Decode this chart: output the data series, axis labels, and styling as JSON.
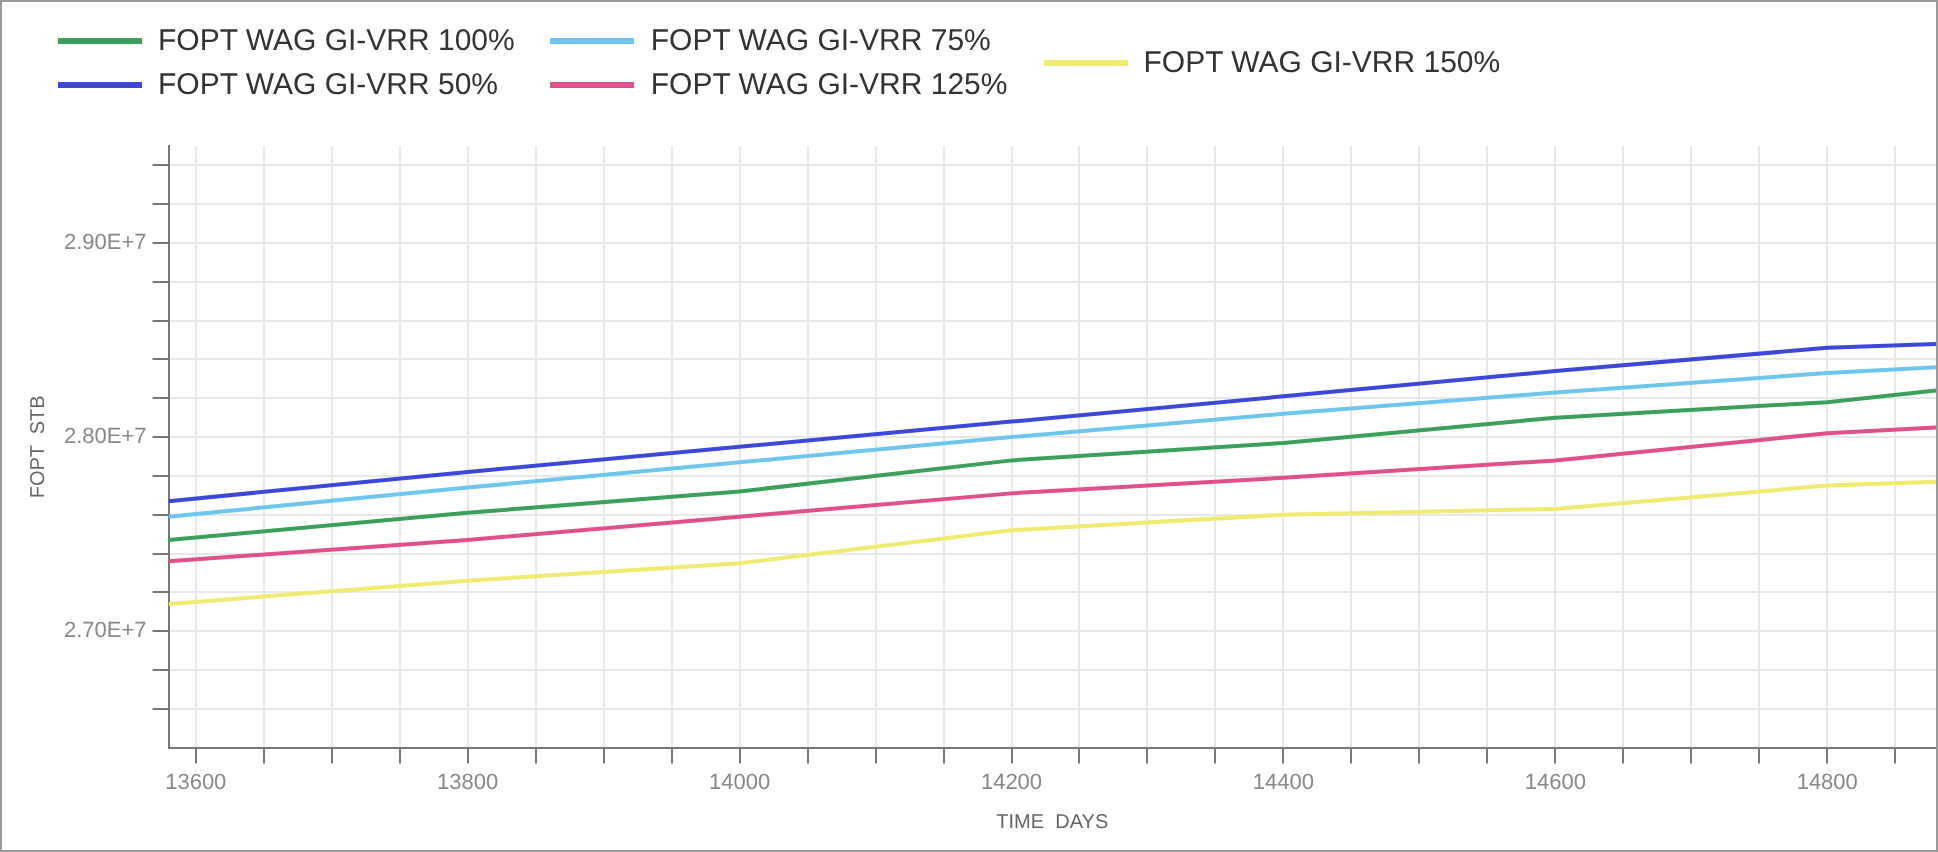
{
  "chart_data": {
    "type": "line",
    "xlabel": "TIME  DAYS",
    "ylabel": "FOPT  STB",
    "x": [
      13580,
      13800,
      14000,
      14200,
      14400,
      14600,
      14800,
      14880
    ],
    "series": [
      {
        "name": "FOPT WAG GI-VRR 100%",
        "color": "#3aa05a",
        "values": [
          27470000,
          27610000,
          27720000,
          27880000,
          27970000,
          28100000,
          28180000,
          28240000
        ]
      },
      {
        "name": "FOPT WAG GI-VRR 50%",
        "color": "#3c48d8",
        "values": [
          27670000,
          27820000,
          27950000,
          28080000,
          28210000,
          28340000,
          28460000,
          28480000
        ]
      },
      {
        "name": "FOPT WAG GI-VRR 75%",
        "color": "#6ec6ee",
        "values": [
          27590000,
          27740000,
          27870000,
          28000000,
          28120000,
          28230000,
          28330000,
          28360000
        ]
      },
      {
        "name": "FOPT WAG GI-VRR 125%",
        "color": "#e0508c",
        "values": [
          27360000,
          27470000,
          27590000,
          27710000,
          27790000,
          27880000,
          28020000,
          28050000
        ]
      },
      {
        "name": "FOPT WAG GI-VRR 150%",
        "color": "#f0ea70",
        "values": [
          27140000,
          27260000,
          27350000,
          27520000,
          27600000,
          27630000,
          27750000,
          27770000
        ]
      }
    ],
    "xlim": [
      13580,
      14880
    ],
    "xticks": [
      {
        "value": 13600,
        "label": "13600"
      },
      {
        "value": 13650,
        "label": null
      },
      {
        "value": 13700,
        "label": null
      },
      {
        "value": 13750,
        "label": null
      },
      13800,
      {
        "value": 13850,
        "label": null
      },
      {
        "value": 13900,
        "label": null
      },
      {
        "value": 13950,
        "label": null
      },
      14000,
      {
        "value": 14050,
        "label": null
      },
      {
        "value": 14100,
        "label": null
      },
      {
        "value": 14150,
        "label": null
      },
      14200,
      {
        "value": 14250,
        "label": null
      },
      {
        "value": 14300,
        "label": null
      },
      {
        "value": 14350,
        "label": null
      },
      14400,
      {
        "value": 14450,
        "label": null
      },
      {
        "value": 14500,
        "label": null
      },
      {
        "value": 14550,
        "label": null
      },
      14600,
      {
        "value": 14650,
        "label": null
      },
      {
        "value": 14700,
        "label": null
      },
      {
        "value": 14750,
        "label": null
      },
      14800,
      {
        "value": 14850,
        "label": null
      }
    ],
    "ylim": [
      26400000,
      29500000
    ],
    "yticks": [
      {
        "value": 26600000,
        "label": null
      },
      {
        "value": 26800000,
        "label": null
      },
      {
        "value": 27000000,
        "label": "2.70E+7"
      },
      {
        "value": 27200000,
        "label": null
      },
      {
        "value": 27400000,
        "label": null
      },
      {
        "value": 27600000,
        "label": null
      },
      {
        "value": 27800000,
        "label": null
      },
      {
        "value": 28000000,
        "label": "2.80E+7"
      },
      {
        "value": 28200000,
        "label": null
      },
      {
        "value": 28400000,
        "label": null
      },
      {
        "value": 28600000,
        "label": null
      },
      {
        "value": 28800000,
        "label": null
      },
      {
        "value": 29000000,
        "label": "2.90E+7"
      },
      {
        "value": 29200000,
        "label": null
      },
      {
        "value": 29400000,
        "label": null
      }
    ],
    "grid": true,
    "legend": "top",
    "marker": "none",
    "line_style": "solid"
  }
}
